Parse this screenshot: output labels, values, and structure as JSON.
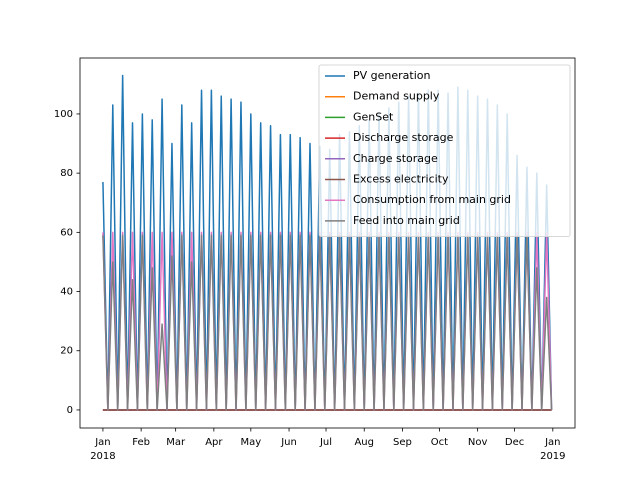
{
  "chart_data": {
    "type": "line",
    "x": [
      0,
      4,
      8,
      12,
      16,
      20,
      24,
      28,
      32,
      36,
      40,
      44,
      48,
      52,
      56,
      60,
      64,
      68,
      72,
      76,
      80,
      84,
      88,
      92,
      96,
      100,
      104,
      108,
      112,
      116,
      120,
      124,
      128,
      132,
      136,
      140,
      144,
      148,
      152,
      156,
      160,
      164,
      168,
      172,
      176,
      180,
      184,
      188,
      192,
      196,
      200,
      204,
      208,
      212,
      216,
      220,
      224,
      228,
      232,
      236,
      240,
      244,
      248,
      252,
      256,
      260,
      264,
      268,
      272,
      276,
      280,
      284,
      288,
      292,
      296,
      300,
      304,
      308,
      312,
      316,
      320,
      324,
      328,
      332,
      336,
      340,
      344,
      348,
      352,
      356,
      360,
      364
    ],
    "series": [
      {
        "name": "PV generation",
        "color": "#1f77b4",
        "values": [
          77,
          0,
          103,
          0,
          113,
          0,
          97,
          0,
          100,
          0,
          98,
          0,
          105,
          0,
          90,
          0,
          103,
          0,
          97,
          0,
          108,
          0,
          108,
          0,
          106,
          0,
          105,
          0,
          104,
          0,
          100,
          0,
          97,
          0,
          96,
          0,
          93,
          0,
          93,
          0,
          92,
          0,
          90,
          0,
          89,
          0,
          88,
          0,
          93,
          0,
          94,
          0,
          96,
          0,
          98,
          0,
          100,
          0,
          102,
          0,
          104,
          0,
          106,
          0,
          107,
          0,
          108,
          0,
          108,
          0,
          107,
          0,
          109,
          0,
          108,
          0,
          106,
          0,
          105,
          0,
          103,
          0,
          100,
          0,
          86,
          0,
          82,
          0,
          80,
          0,
          76,
          0
        ]
      },
      {
        "name": "Demand supply",
        "color": "#ff7f0e",
        "values": [
          0,
          0,
          0,
          0,
          0,
          0,
          0,
          0,
          0,
          0,
          0,
          0,
          0,
          0,
          0,
          0,
          0,
          0,
          0,
          0,
          0,
          0,
          0,
          0,
          0,
          0,
          0,
          0,
          0,
          0,
          0,
          0,
          0,
          0,
          0,
          0,
          0,
          0,
          0,
          0,
          0,
          0,
          0,
          0,
          0,
          0,
          0,
          0,
          0,
          0,
          0,
          0,
          0,
          0,
          0,
          0,
          0,
          0,
          0,
          0,
          0,
          0,
          0,
          0,
          0,
          0,
          0,
          0,
          0,
          0,
          0,
          0,
          0,
          0,
          0,
          0,
          0,
          0,
          0,
          0,
          0,
          0,
          0,
          0,
          0,
          0,
          0,
          0,
          0,
          0,
          0,
          0
        ]
      },
      {
        "name": "GenSet",
        "color": "#2ca02c",
        "values": [
          0,
          0,
          0,
          0,
          0,
          0,
          0,
          0,
          0,
          0,
          0,
          0,
          0,
          0,
          0,
          0,
          0,
          0,
          0,
          0,
          0,
          0,
          0,
          0,
          0,
          0,
          0,
          0,
          0,
          0,
          0,
          0,
          0,
          0,
          0,
          0,
          0,
          0,
          0,
          0,
          0,
          0,
          0,
          0,
          0,
          0,
          0,
          0,
          0,
          0,
          0,
          0,
          0,
          0,
          0,
          0,
          0,
          0,
          0,
          0,
          0,
          0,
          0,
          0,
          0,
          0,
          0,
          0,
          0,
          0,
          0,
          0,
          0,
          0,
          0,
          0,
          0,
          0,
          0,
          0,
          0,
          0,
          0,
          0,
          0,
          0,
          0,
          0,
          0,
          0,
          0,
          0
        ]
      },
      {
        "name": "Discharge storage",
        "color": "#d62728",
        "values": [
          0,
          0,
          0,
          0,
          0,
          0,
          0,
          0,
          0,
          0,
          0,
          0,
          0,
          0,
          0,
          0,
          0,
          0,
          0,
          0,
          0,
          0,
          0,
          0,
          0,
          0,
          0,
          0,
          0,
          0,
          0,
          0,
          0,
          0,
          0,
          0,
          0,
          0,
          0,
          0,
          0,
          0,
          0,
          0,
          0,
          0,
          0,
          0,
          0,
          0,
          0,
          0,
          0,
          0,
          0,
          0,
          0,
          0,
          0,
          0,
          0,
          0,
          0,
          0,
          0,
          0,
          0,
          0,
          0,
          0,
          0,
          0,
          0,
          0,
          0,
          0,
          0,
          0,
          0,
          0,
          0,
          0,
          0,
          0,
          0,
          0,
          0,
          0,
          0,
          0,
          0,
          0
        ]
      },
      {
        "name": "Charge storage",
        "color": "#9467bd",
        "values": [
          0,
          0,
          0,
          0,
          0,
          0,
          0,
          0,
          0,
          0,
          0,
          0,
          0,
          0,
          0,
          0,
          0,
          0,
          0,
          0,
          0,
          0,
          0,
          0,
          0,
          0,
          0,
          0,
          0,
          0,
          0,
          0,
          0,
          0,
          0,
          0,
          0,
          0,
          0,
          0,
          0,
          0,
          0,
          0,
          0,
          0,
          0,
          0,
          0,
          0,
          0,
          0,
          0,
          0,
          0,
          0,
          0,
          0,
          0,
          0,
          0,
          0,
          0,
          0,
          0,
          0,
          0,
          0,
          0,
          0,
          0,
          0,
          0,
          0,
          0,
          0,
          0,
          0,
          0,
          0,
          0,
          0,
          0,
          0,
          0,
          0,
          0,
          0,
          0,
          0,
          0,
          0
        ]
      },
      {
        "name": "Excess electricity",
        "color": "#8c564b",
        "values": [
          0,
          0,
          0,
          0,
          0,
          0,
          0,
          0,
          0,
          0,
          0,
          0,
          0,
          0,
          0,
          0,
          0,
          0,
          0,
          0,
          0,
          0,
          0,
          0,
          0,
          0,
          0,
          0,
          0,
          0,
          0,
          0,
          0,
          0,
          0,
          0,
          0,
          0,
          0,
          0,
          0,
          0,
          0,
          0,
          0,
          0,
          0,
          0,
          0,
          0,
          0,
          0,
          0,
          0,
          0,
          0,
          0,
          0,
          0,
          0,
          0,
          0,
          0,
          0,
          0,
          0,
          0,
          0,
          0,
          0,
          0,
          0,
          0,
          0,
          0,
          0,
          0,
          0,
          0,
          0,
          0,
          0,
          0,
          0,
          0,
          0,
          0,
          0,
          0,
          0,
          0,
          0
        ]
      },
      {
        "name": "Consumption from main grid",
        "color": "#e377c2",
        "values": [
          60,
          0,
          60,
          0,
          60,
          0,
          60,
          0,
          60,
          0,
          60,
          0,
          60,
          0,
          60,
          0,
          60,
          0,
          60,
          0,
          60,
          0,
          60,
          0,
          60,
          0,
          60,
          0,
          60,
          0,
          60,
          0,
          60,
          0,
          60,
          0,
          60,
          0,
          60,
          0,
          60,
          0,
          60,
          0,
          60,
          0,
          60,
          0,
          60,
          0,
          60,
          0,
          60,
          0,
          60,
          0,
          60,
          0,
          60,
          0,
          60,
          0,
          60,
          0,
          60,
          0,
          60,
          0,
          60,
          0,
          60,
          0,
          60,
          0,
          60,
          0,
          60,
          0,
          60,
          0,
          60,
          0,
          60,
          0,
          60,
          0,
          60,
          0,
          60,
          0,
          60,
          0
        ]
      },
      {
        "name": "Feed into main grid",
        "color": "#7f7f7f",
        "values": [
          59,
          0,
          50,
          0,
          59,
          0,
          44,
          0,
          59,
          0,
          48,
          0,
          29,
          0,
          52,
          0,
          59,
          0,
          50,
          0,
          59,
          0,
          59,
          0,
          59,
          0,
          59,
          0,
          59,
          0,
          59,
          0,
          59,
          0,
          59,
          0,
          59,
          0,
          59,
          0,
          59,
          0,
          59,
          0,
          59,
          0,
          59,
          0,
          59,
          0,
          59,
          0,
          59,
          0,
          59,
          0,
          59,
          0,
          59,
          0,
          59,
          0,
          59,
          0,
          59,
          0,
          59,
          0,
          59,
          0,
          59,
          0,
          59,
          0,
          59,
          0,
          59,
          0,
          59,
          0,
          59,
          0,
          59,
          0,
          59,
          0,
          59,
          0,
          48,
          0,
          38,
          0
        ]
      }
    ],
    "xlim": [
      -18.6,
      383
    ],
    "xticks": [
      {
        "value": 0,
        "label": "Jan\n2018"
      },
      {
        "value": 31,
        "label": "Feb"
      },
      {
        "value": 59,
        "label": "Mar"
      },
      {
        "value": 90,
        "label": "Apr"
      },
      {
        "value": 120,
        "label": "May"
      },
      {
        "value": 151,
        "label": "Jun"
      },
      {
        "value": 181,
        "label": "Jul"
      },
      {
        "value": 212,
        "label": "Aug"
      },
      {
        "value": 243,
        "label": "Sep"
      },
      {
        "value": 273,
        "label": "Oct"
      },
      {
        "value": 304,
        "label": "Nov"
      },
      {
        "value": 334,
        "label": "Dec"
      },
      {
        "value": 365,
        "label": "Jan\n2019"
      }
    ],
    "ylim": [
      -6.1,
      118.9
    ],
    "yticks": [
      0,
      20,
      40,
      60,
      80,
      100
    ],
    "legend": "upper right"
  }
}
